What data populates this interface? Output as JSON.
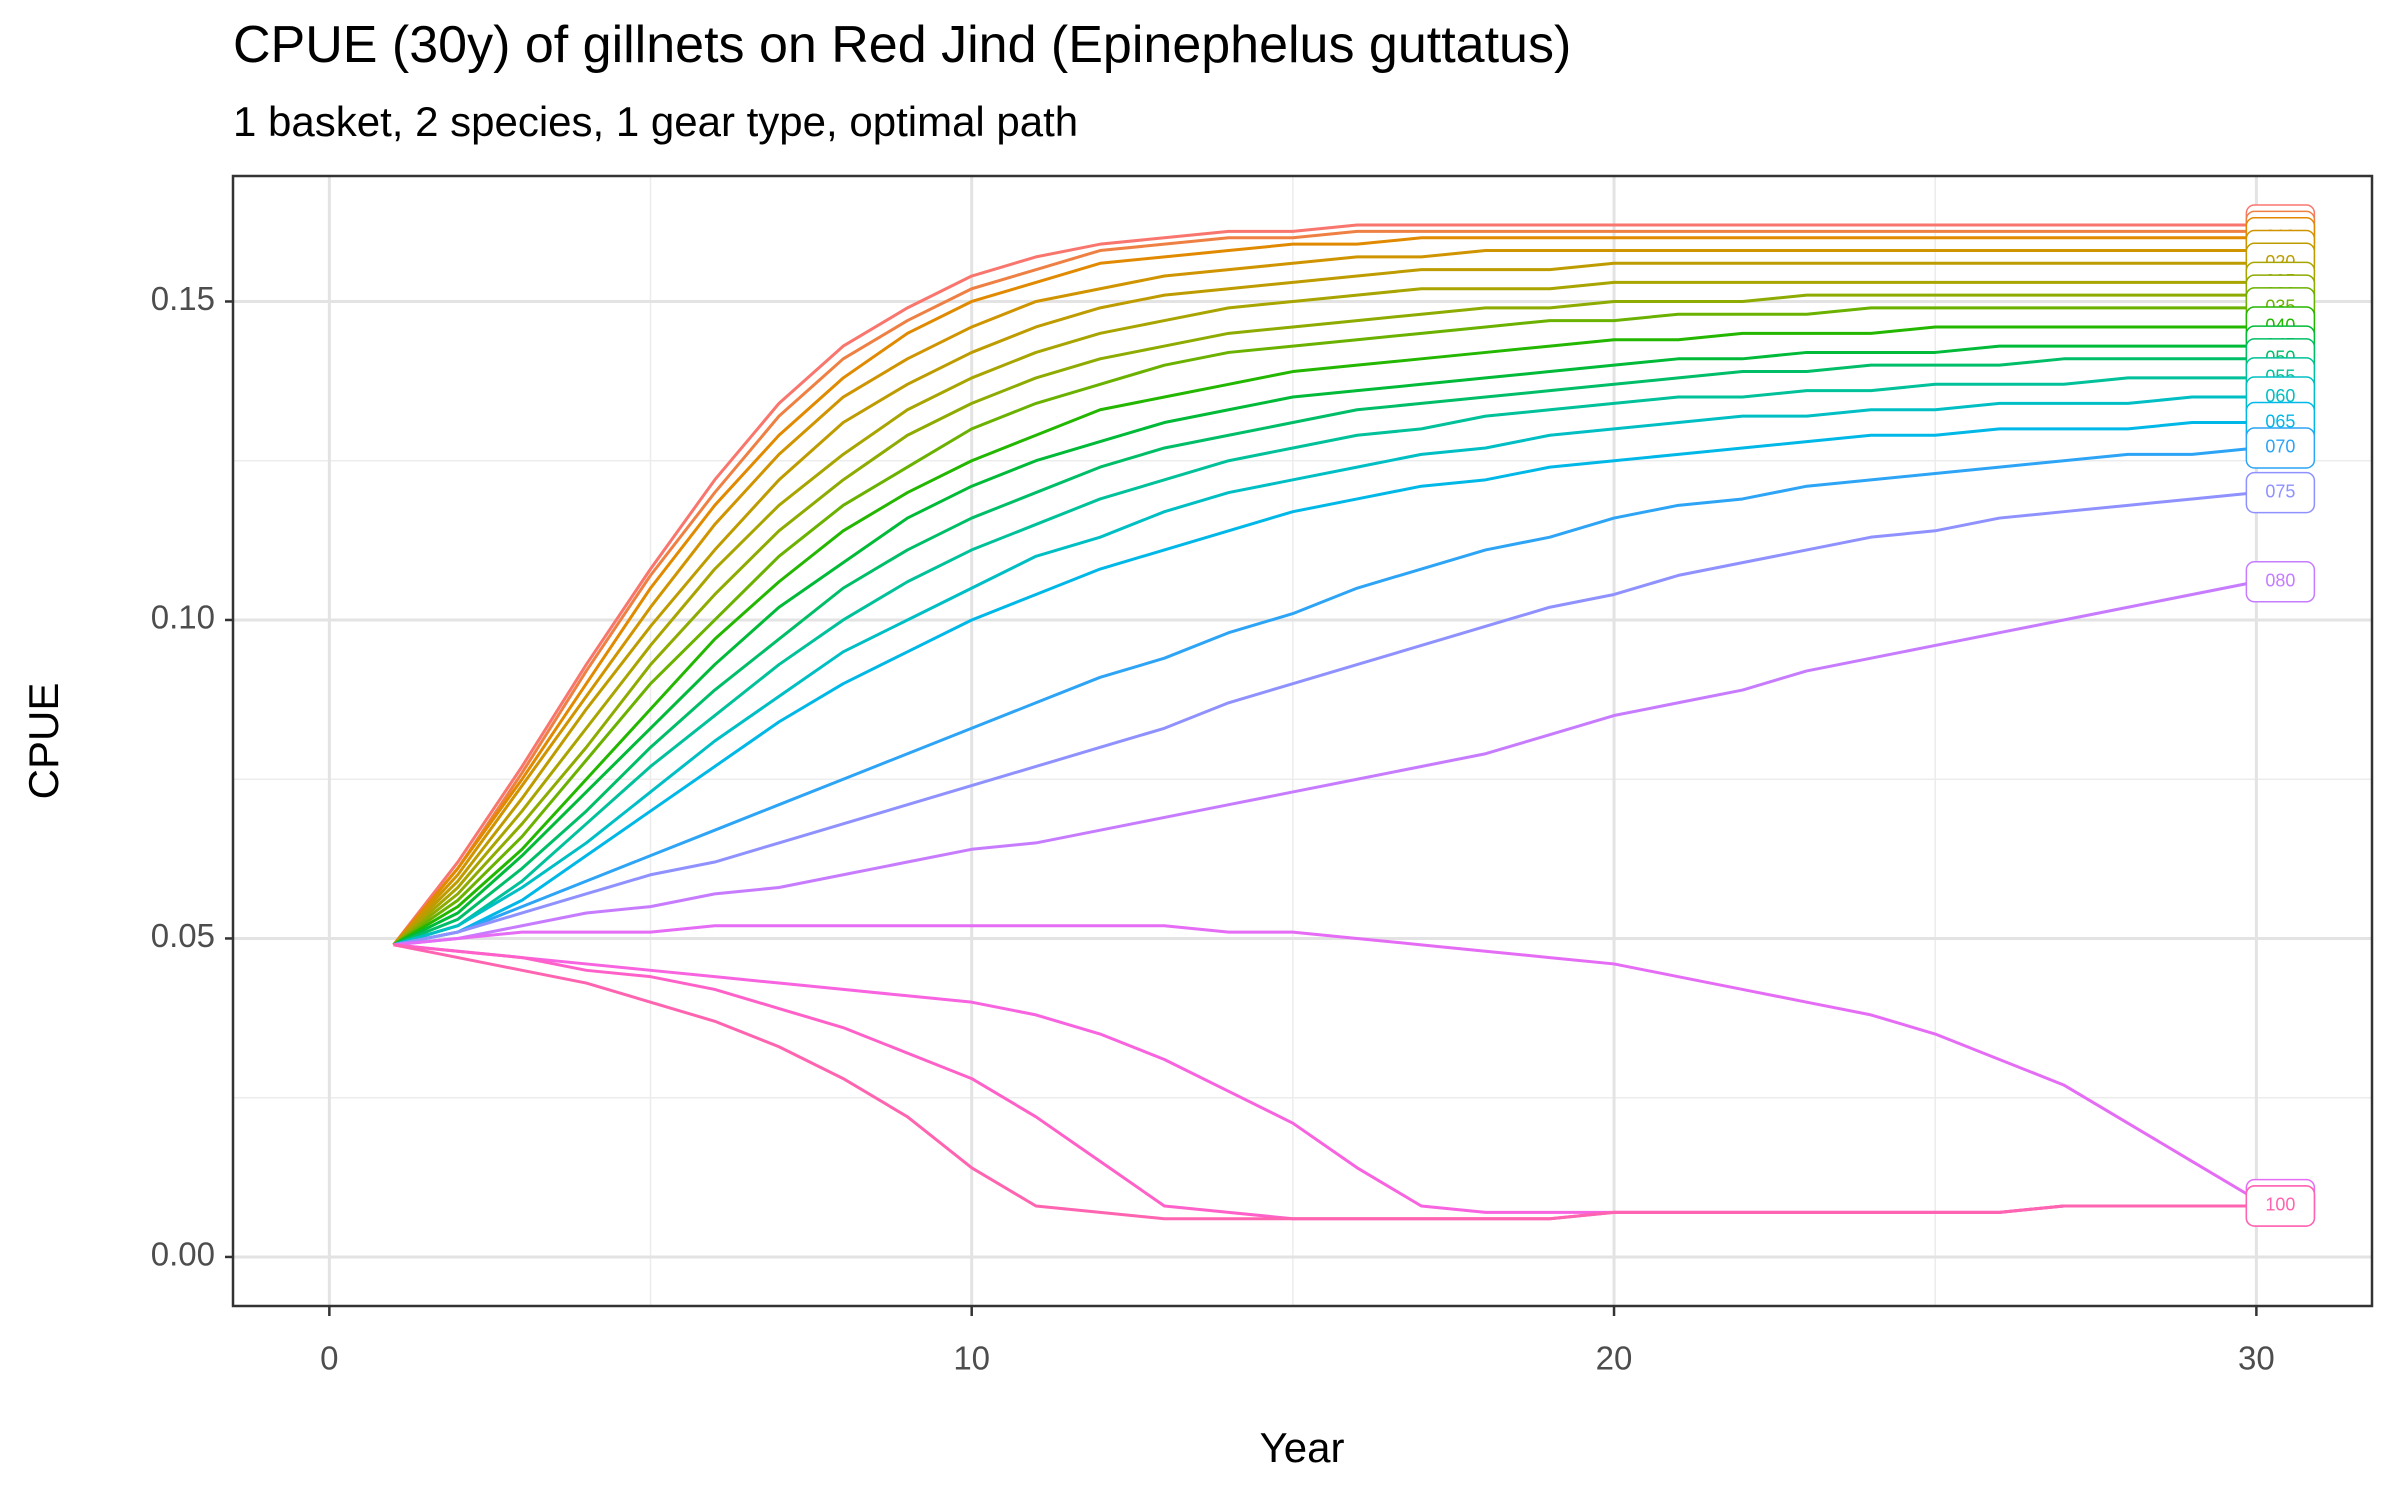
{
  "chart_data": {
    "type": "line",
    "title": "CPUE (30y) of gillnets on Red Jind (Epinephelus guttatus)",
    "subtitle": "1 basket, 2 species, 1 gear type, optimal path",
    "x_label": "Year",
    "y_label": "CPUE",
    "xlim": [
      -1.5,
      31.8
    ],
    "ylim": [
      -0.0077,
      0.1697
    ],
    "xticks": [
      0,
      10,
      20,
      30
    ],
    "yticks": [
      {
        "value": 0,
        "label": "0.00"
      },
      {
        "value": 0.05,
        "label": "0.05"
      },
      {
        "value": 0.1,
        "label": "0.10"
      },
      {
        "value": 0.15,
        "label": "0.15"
      }
    ],
    "xminor": [
      5,
      15,
      25
    ],
    "yminor": [
      0.025,
      0.075,
      0.125
    ],
    "grid": true,
    "x": [
      1,
      2,
      3,
      4,
      5,
      6,
      7,
      8,
      9,
      10,
      11,
      12,
      13,
      14,
      15,
      16,
      17,
      18,
      19,
      20,
      21,
      22,
      23,
      24,
      25,
      26,
      27,
      28,
      29,
      30
    ],
    "series": [
      {
        "name": "000",
        "color": "#F8766D",
        "values": [
          0.049,
          0.062,
          0.077,
          0.093,
          0.108,
          0.122,
          0.134,
          0.143,
          0.149,
          0.154,
          0.157,
          0.159,
          0.16,
          0.161,
          0.161,
          0.162,
          0.162,
          0.162,
          0.162,
          0.162,
          0.162,
          0.162,
          0.162,
          0.162,
          0.162,
          0.162,
          0.162,
          0.162,
          0.162,
          0.162
        ]
      },
      {
        "name": "005",
        "color": "#EE8043",
        "values": [
          0.049,
          0.061,
          0.076,
          0.092,
          0.107,
          0.12,
          0.132,
          0.141,
          0.147,
          0.152,
          0.155,
          0.158,
          0.159,
          0.16,
          0.16,
          0.161,
          0.161,
          0.161,
          0.161,
          0.161,
          0.161,
          0.161,
          0.161,
          0.161,
          0.161,
          0.161,
          0.161,
          0.161,
          0.161,
          0.161
        ]
      },
      {
        "name": "010",
        "color": "#E18A00",
        "values": [
          0.049,
          0.061,
          0.075,
          0.09,
          0.105,
          0.118,
          0.129,
          0.138,
          0.145,
          0.15,
          0.153,
          0.156,
          0.157,
          0.158,
          0.159,
          0.159,
          0.16,
          0.16,
          0.16,
          0.16,
          0.16,
          0.16,
          0.16,
          0.16,
          0.16,
          0.16,
          0.16,
          0.16,
          0.16,
          0.16
        ]
      },
      {
        "name": "015",
        "color": "#D09400",
        "values": [
          0.049,
          0.06,
          0.074,
          0.088,
          0.102,
          0.115,
          0.126,
          0.135,
          0.141,
          0.146,
          0.15,
          0.152,
          0.154,
          0.155,
          0.156,
          0.157,
          0.157,
          0.158,
          0.158,
          0.158,
          0.158,
          0.158,
          0.158,
          0.158,
          0.158,
          0.158,
          0.158,
          0.158,
          0.158,
          0.158
        ]
      },
      {
        "name": "020",
        "color": "#BE9C00",
        "values": [
          0.049,
          0.059,
          0.072,
          0.086,
          0.099,
          0.111,
          0.122,
          0.131,
          0.137,
          0.142,
          0.146,
          0.149,
          0.151,
          0.152,
          0.153,
          0.154,
          0.155,
          0.155,
          0.155,
          0.156,
          0.156,
          0.156,
          0.156,
          0.156,
          0.156,
          0.156,
          0.156,
          0.156,
          0.156,
          0.156
        ]
      },
      {
        "name": "025",
        "color": "#A8A400",
        "values": [
          0.049,
          0.058,
          0.07,
          0.083,
          0.096,
          0.108,
          0.118,
          0.126,
          0.133,
          0.138,
          0.142,
          0.145,
          0.147,
          0.149,
          0.15,
          0.151,
          0.152,
          0.152,
          0.152,
          0.153,
          0.153,
          0.153,
          0.153,
          0.153,
          0.153,
          0.153,
          0.153,
          0.153,
          0.153,
          0.153
        ]
      },
      {
        "name": "030",
        "color": "#8DAB00",
        "values": [
          0.049,
          0.057,
          0.068,
          0.08,
          0.093,
          0.104,
          0.114,
          0.122,
          0.129,
          0.134,
          0.138,
          0.141,
          0.143,
          0.145,
          0.146,
          0.147,
          0.148,
          0.149,
          0.149,
          0.15,
          0.15,
          0.15,
          0.151,
          0.151,
          0.151,
          0.151,
          0.151,
          0.151,
          0.151,
          0.151
        ]
      },
      {
        "name": "035",
        "color": "#6AB100",
        "values": [
          0.049,
          0.056,
          0.066,
          0.078,
          0.09,
          0.1,
          0.11,
          0.118,
          0.124,
          0.13,
          0.134,
          0.137,
          0.14,
          0.142,
          0.143,
          0.144,
          0.145,
          0.146,
          0.147,
          0.147,
          0.148,
          0.148,
          0.148,
          0.149,
          0.149,
          0.149,
          0.149,
          0.149,
          0.149,
          0.149
        ]
      },
      {
        "name": "040",
        "color": "#24B700",
        "values": [
          0.049,
          0.055,
          0.064,
          0.075,
          0.086,
          0.097,
          0.106,
          0.114,
          0.12,
          0.125,
          0.129,
          0.133,
          0.135,
          0.137,
          0.139,
          0.14,
          0.141,
          0.142,
          0.143,
          0.144,
          0.144,
          0.145,
          0.145,
          0.145,
          0.146,
          0.146,
          0.146,
          0.146,
          0.146,
          0.146
        ]
      },
      {
        "name": "045",
        "color": "#00BA38",
        "values": [
          0.049,
          0.054,
          0.063,
          0.073,
          0.083,
          0.093,
          0.102,
          0.109,
          0.116,
          0.121,
          0.125,
          0.128,
          0.131,
          0.133,
          0.135,
          0.136,
          0.137,
          0.138,
          0.139,
          0.14,
          0.141,
          0.141,
          0.142,
          0.142,
          0.142,
          0.143,
          0.143,
          0.143,
          0.143,
          0.143
        ]
      },
      {
        "name": "050",
        "color": "#00BE67",
        "values": [
          0.049,
          0.053,
          0.061,
          0.07,
          0.08,
          0.089,
          0.097,
          0.105,
          0.111,
          0.116,
          0.12,
          0.124,
          0.127,
          0.129,
          0.131,
          0.133,
          0.134,
          0.135,
          0.136,
          0.137,
          0.138,
          0.139,
          0.139,
          0.14,
          0.14,
          0.14,
          0.141,
          0.141,
          0.141,
          0.141
        ]
      },
      {
        "name": "055",
        "color": "#00C19A",
        "values": [
          0.049,
          0.052,
          0.059,
          0.068,
          0.077,
          0.085,
          0.093,
          0.1,
          0.106,
          0.111,
          0.115,
          0.119,
          0.122,
          0.125,
          0.127,
          0.129,
          0.13,
          0.132,
          0.133,
          0.134,
          0.135,
          0.135,
          0.136,
          0.136,
          0.137,
          0.137,
          0.137,
          0.138,
          0.138,
          0.138
        ]
      },
      {
        "name": "060",
        "color": "#00BFC4",
        "values": [
          0.049,
          0.052,
          0.058,
          0.065,
          0.073,
          0.081,
          0.088,
          0.095,
          0.1,
          0.105,
          0.11,
          0.113,
          0.117,
          0.12,
          0.122,
          0.124,
          0.126,
          0.127,
          0.129,
          0.13,
          0.131,
          0.132,
          0.132,
          0.133,
          0.133,
          0.134,
          0.134,
          0.134,
          0.135,
          0.135
        ]
      },
      {
        "name": "065",
        "color": "#00B8E7",
        "values": [
          0.049,
          0.051,
          0.056,
          0.063,
          0.07,
          0.077,
          0.084,
          0.09,
          0.095,
          0.1,
          0.104,
          0.108,
          0.111,
          0.114,
          0.117,
          0.119,
          0.121,
          0.122,
          0.124,
          0.125,
          0.126,
          0.127,
          0.128,
          0.129,
          0.129,
          0.13,
          0.13,
          0.13,
          0.131,
          0.131
        ]
      },
      {
        "name": "070",
        "color": "#2DA4F5",
        "values": [
          0.049,
          0.051,
          0.055,
          0.059,
          0.063,
          0.067,
          0.071,
          0.075,
          0.079,
          0.083,
          0.087,
          0.091,
          0.094,
          0.098,
          0.101,
          0.105,
          0.108,
          0.111,
          0.113,
          0.116,
          0.118,
          0.119,
          0.121,
          0.122,
          0.123,
          0.124,
          0.125,
          0.126,
          0.126,
          0.127
        ]
      },
      {
        "name": "075",
        "color": "#8F91FF",
        "values": [
          0.049,
          0.051,
          0.054,
          0.057,
          0.06,
          0.062,
          0.065,
          0.068,
          0.071,
          0.074,
          0.077,
          0.08,
          0.083,
          0.087,
          0.09,
          0.093,
          0.096,
          0.099,
          0.102,
          0.104,
          0.107,
          0.109,
          0.111,
          0.113,
          0.114,
          0.116,
          0.117,
          0.118,
          0.119,
          0.12
        ]
      },
      {
        "name": "080",
        "color": "#C77CFF",
        "values": [
          0.049,
          0.05,
          0.052,
          0.054,
          0.055,
          0.057,
          0.058,
          0.06,
          0.062,
          0.064,
          0.065,
          0.067,
          0.069,
          0.071,
          0.073,
          0.075,
          0.077,
          0.079,
          0.082,
          0.085,
          0.087,
          0.089,
          0.092,
          0.094,
          0.096,
          0.098,
          0.1,
          0.102,
          0.104,
          0.106
        ]
      },
      {
        "name": "085",
        "color": "#E56CF4",
        "values": [
          0.049,
          0.05,
          0.051,
          0.051,
          0.051,
          0.052,
          0.052,
          0.052,
          0.052,
          0.052,
          0.052,
          0.052,
          0.052,
          0.051,
          0.051,
          0.05,
          0.049,
          0.048,
          0.047,
          0.046,
          0.044,
          0.042,
          0.04,
          0.038,
          0.035,
          0.031,
          0.027,
          0.021,
          0.015,
          0.009
        ]
      },
      {
        "name": "090",
        "color": "#F863DF",
        "values": [
          0.049,
          0.048,
          0.047,
          0.046,
          0.045,
          0.044,
          0.043,
          0.042,
          0.041,
          0.04,
          0.038,
          0.035,
          0.031,
          0.026,
          0.021,
          0.014,
          0.008,
          0.007,
          0.007,
          0.007,
          0.007,
          0.007,
          0.007,
          0.007,
          0.007,
          0.007,
          0.008,
          0.008,
          0.008,
          0.008
        ]
      },
      {
        "name": "095",
        "color": "#FF61C9",
        "values": [
          0.049,
          0.048,
          0.047,
          0.045,
          0.044,
          0.042,
          0.039,
          0.036,
          0.032,
          0.028,
          0.022,
          0.015,
          0.008,
          0.007,
          0.006,
          0.006,
          0.006,
          0.006,
          0.006,
          0.007,
          0.007,
          0.007,
          0.007,
          0.007,
          0.007,
          0.007,
          0.008,
          0.008,
          0.008,
          0.008
        ]
      },
      {
        "name": "100",
        "color": "#FF64B0",
        "values": [
          0.049,
          0.047,
          0.045,
          0.043,
          0.04,
          0.037,
          0.033,
          0.028,
          0.022,
          0.014,
          0.008,
          0.007,
          0.006,
          0.006,
          0.006,
          0.006,
          0.006,
          0.006,
          0.006,
          0.007,
          0.007,
          0.007,
          0.007,
          0.007,
          0.007,
          0.007,
          0.008,
          0.008,
          0.008,
          0.008
        ]
      }
    ]
  }
}
